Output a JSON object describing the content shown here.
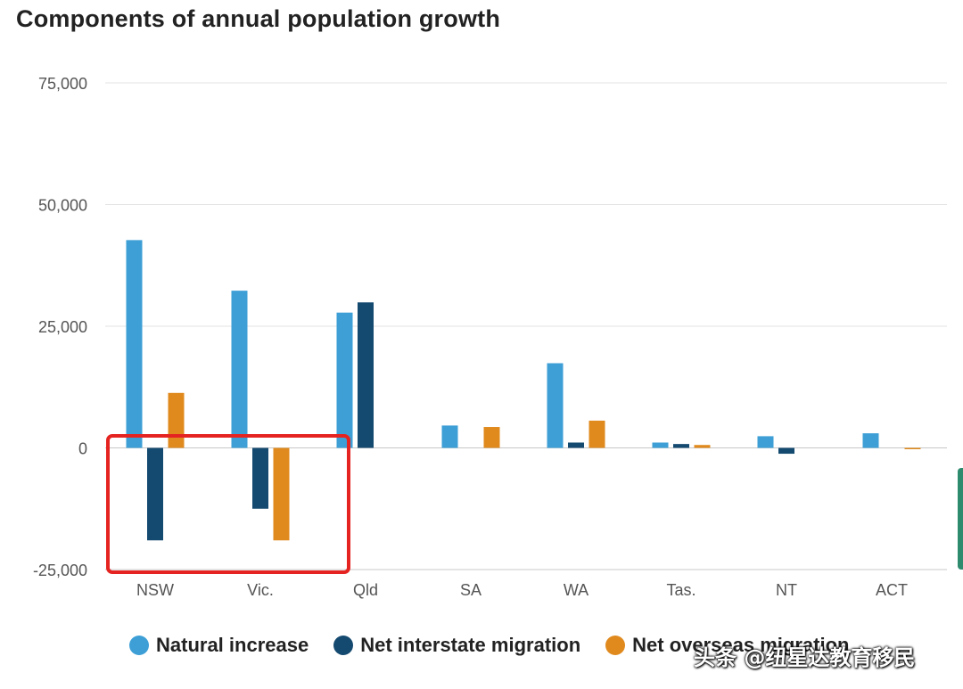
{
  "title": "Components of annual population growth",
  "chart_data": {
    "type": "bar",
    "title": "Components of annual population growth",
    "categories": [
      "NSW",
      "Vic.",
      "Qld",
      "SA",
      "WA",
      "Tas.",
      "NT",
      "ACT"
    ],
    "series": [
      {
        "name": "Natural increase",
        "color": "#3d9fd6",
        "values": [
          42700,
          32300,
          27800,
          4600,
          17400,
          1100,
          2400,
          3000
        ]
      },
      {
        "name": "Net interstate migration",
        "color": "#154a70",
        "values": [
          -19000,
          -12500,
          29900,
          0,
          1100,
          800,
          -1200,
          0
        ]
      },
      {
        "name": "Net overseas migration",
        "color": "#e08a1e",
        "values": [
          11300,
          -19000,
          0,
          4300,
          5600,
          600,
          0,
          -200
        ]
      }
    ],
    "yticks": [
      -25000,
      0,
      25000,
      50000,
      75000
    ],
    "ytick_labels": [
      "-25,000",
      "0",
      "25,000",
      "50,000",
      "75,000"
    ],
    "ylim": [
      -25000,
      75000
    ],
    "xlabel": "",
    "ylabel": "",
    "legend": "bottom"
  },
  "legend": {
    "items": [
      {
        "label": "Natural increase",
        "color": "#3d9fd6"
      },
      {
        "label": "Net interstate migration",
        "color": "#154a70"
      },
      {
        "label": "Net overseas migration",
        "color": "#e08a1e"
      }
    ]
  },
  "annotation": {
    "color": "#e52421",
    "covers": [
      "NSW",
      "Vic."
    ]
  },
  "watermark": "头条 @纽星达教育移民"
}
